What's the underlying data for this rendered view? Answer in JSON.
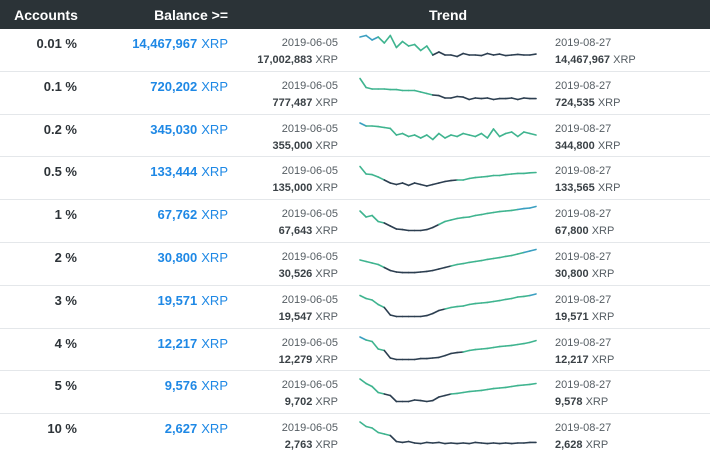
{
  "header": {
    "accounts": "Accounts",
    "balance": "Balance >=",
    "trend": "Trend"
  },
  "unit": "XRP",
  "start_date": "2019-06-05",
  "end_date": "2019-08-27",
  "colors": {
    "header_bg": "#2b3337",
    "balance_blue": "#1e88e5",
    "trend_dark": "#2c3e50",
    "trend_green": "#3fb48f",
    "trend_teal": "#3a9fc1"
  },
  "rows": [
    {
      "pct": "0.01 %",
      "balance": "14,467,967",
      "start_val": "17,002,883",
      "end_val": "14,467,967",
      "trend": [
        0.9,
        0.95,
        0.8,
        0.9,
        0.7,
        0.95,
        0.55,
        0.75,
        0.6,
        0.65,
        0.45,
        0.6,
        0.3,
        0.4,
        0.3,
        0.3,
        0.25,
        0.35,
        0.3,
        0.3,
        0.28,
        0.35,
        0.3,
        0.33,
        0.28,
        0.3,
        0.32,
        0.3,
        0.3,
        0.33
      ]
    },
    {
      "pct": "0.1 %",
      "balance": "720,202",
      "start_val": "777,487",
      "end_val": "724,535",
      "trend": [
        0.95,
        0.65,
        0.6,
        0.6,
        0.6,
        0.58,
        0.58,
        0.55,
        0.55,
        0.55,
        0.5,
        0.45,
        0.4,
        0.38,
        0.3,
        0.3,
        0.35,
        0.33,
        0.25,
        0.3,
        0.28,
        0.3,
        0.25,
        0.28,
        0.28,
        0.3,
        0.25,
        0.3,
        0.28,
        0.28
      ]
    },
    {
      "pct": "0.2 %",
      "balance": "345,030",
      "start_val": "355,000",
      "end_val": "344,800",
      "trend": [
        0.9,
        0.8,
        0.8,
        0.78,
        0.75,
        0.72,
        0.5,
        0.55,
        0.45,
        0.5,
        0.4,
        0.5,
        0.35,
        0.55,
        0.4,
        0.5,
        0.45,
        0.55,
        0.5,
        0.45,
        0.55,
        0.4,
        0.7,
        0.45,
        0.55,
        0.6,
        0.45,
        0.6,
        0.55,
        0.5
      ]
    },
    {
      "pct": "0.5 %",
      "balance": "133,444",
      "start_val": "135,000",
      "end_val": "133,565",
      "trend": [
        0.85,
        0.6,
        0.58,
        0.5,
        0.4,
        0.3,
        0.25,
        0.3,
        0.22,
        0.3,
        0.25,
        0.2,
        0.25,
        0.3,
        0.35,
        0.38,
        0.4,
        0.4,
        0.45,
        0.48,
        0.5,
        0.52,
        0.55,
        0.55,
        0.58,
        0.6,
        0.62,
        0.62,
        0.64,
        0.65
      ]
    },
    {
      "pct": "1 %",
      "balance": "67,762",
      "start_val": "67,643",
      "end_val": "67,800",
      "trend": [
        0.8,
        0.6,
        0.65,
        0.45,
        0.4,
        0.3,
        0.2,
        0.18,
        0.15,
        0.15,
        0.15,
        0.18,
        0.25,
        0.35,
        0.45,
        0.5,
        0.55,
        0.58,
        0.6,
        0.65,
        0.68,
        0.72,
        0.75,
        0.78,
        0.8,
        0.82,
        0.85,
        0.88,
        0.9,
        0.95
      ]
    },
    {
      "pct": "2 %",
      "balance": "30,800",
      "start_val": "30,526",
      "end_val": "30,800",
      "trend": [
        0.6,
        0.55,
        0.5,
        0.45,
        0.35,
        0.25,
        0.2,
        0.18,
        0.18,
        0.18,
        0.2,
        0.22,
        0.25,
        0.3,
        0.35,
        0.4,
        0.45,
        0.48,
        0.52,
        0.55,
        0.58,
        0.62,
        0.65,
        0.68,
        0.72,
        0.75,
        0.8,
        0.85,
        0.9,
        0.95
      ]
    },
    {
      "pct": "3 %",
      "balance": "19,571",
      "start_val": "19,547",
      "end_val": "19,571",
      "trend": [
        0.85,
        0.75,
        0.7,
        0.55,
        0.45,
        0.2,
        0.15,
        0.15,
        0.15,
        0.15,
        0.15,
        0.18,
        0.25,
        0.35,
        0.4,
        0.45,
        0.48,
        0.5,
        0.55,
        0.58,
        0.6,
        0.62,
        0.65,
        0.68,
        0.72,
        0.75,
        0.8,
        0.82,
        0.85,
        0.9
      ]
    },
    {
      "pct": "4 %",
      "balance": "12,217",
      "start_val": "12,279",
      "end_val": "12,217",
      "trend": [
        0.9,
        0.8,
        0.75,
        0.5,
        0.45,
        0.2,
        0.15,
        0.15,
        0.15,
        0.15,
        0.18,
        0.18,
        0.2,
        0.22,
        0.28,
        0.35,
        0.38,
        0.4,
        0.45,
        0.48,
        0.5,
        0.52,
        0.55,
        0.58,
        0.6,
        0.62,
        0.65,
        0.68,
        0.72,
        0.78
      ]
    },
    {
      "pct": "5 %",
      "balance": "9,576",
      "start_val": "9,702",
      "end_val": "9,578",
      "trend": [
        0.9,
        0.75,
        0.65,
        0.45,
        0.4,
        0.35,
        0.15,
        0.15,
        0.15,
        0.2,
        0.18,
        0.15,
        0.18,
        0.3,
        0.35,
        0.4,
        0.42,
        0.45,
        0.48,
        0.5,
        0.52,
        0.55,
        0.58,
        0.6,
        0.62,
        0.65,
        0.68,
        0.7,
        0.72,
        0.75
      ]
    },
    {
      "pct": "10 %",
      "balance": "2,627",
      "start_val": "2,763",
      "end_val": "2,628",
      "trend": [
        0.9,
        0.75,
        0.7,
        0.55,
        0.5,
        0.45,
        0.25,
        0.22,
        0.25,
        0.2,
        0.18,
        0.22,
        0.2,
        0.22,
        0.18,
        0.2,
        0.18,
        0.2,
        0.18,
        0.22,
        0.2,
        0.18,
        0.2,
        0.18,
        0.2,
        0.18,
        0.2,
        0.2,
        0.22,
        0.22
      ]
    }
  ]
}
